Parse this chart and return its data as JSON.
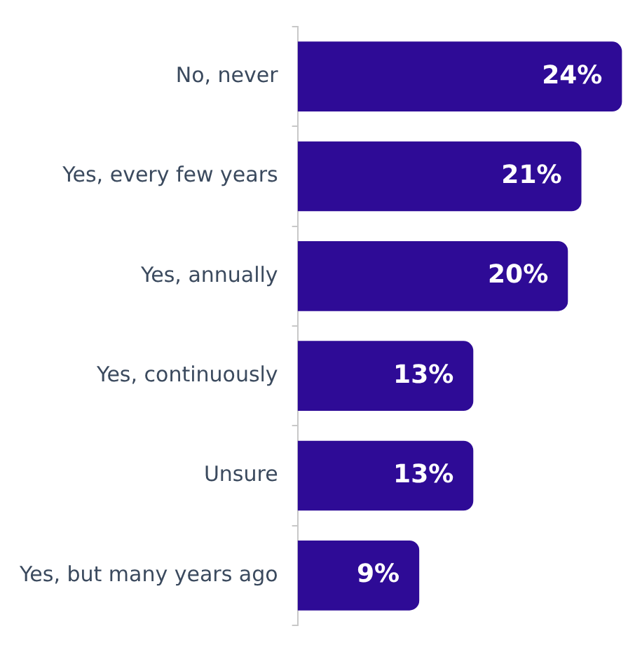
{
  "chart_data": {
    "type": "bar",
    "orientation": "horizontal",
    "value_labels": [
      "24%",
      "21%",
      "20%",
      "13%",
      "13%",
      "9%"
    ],
    "categories": [
      "No, never",
      "Yes, every few years",
      "Yes, annually",
      "Yes, continuously",
      "Unsure",
      "Yes, but many years ago"
    ],
    "values": [
      24,
      21,
      20,
      13,
      13,
      9
    ],
    "color": "#2e0b96",
    "grid": false,
    "legend": false
  }
}
